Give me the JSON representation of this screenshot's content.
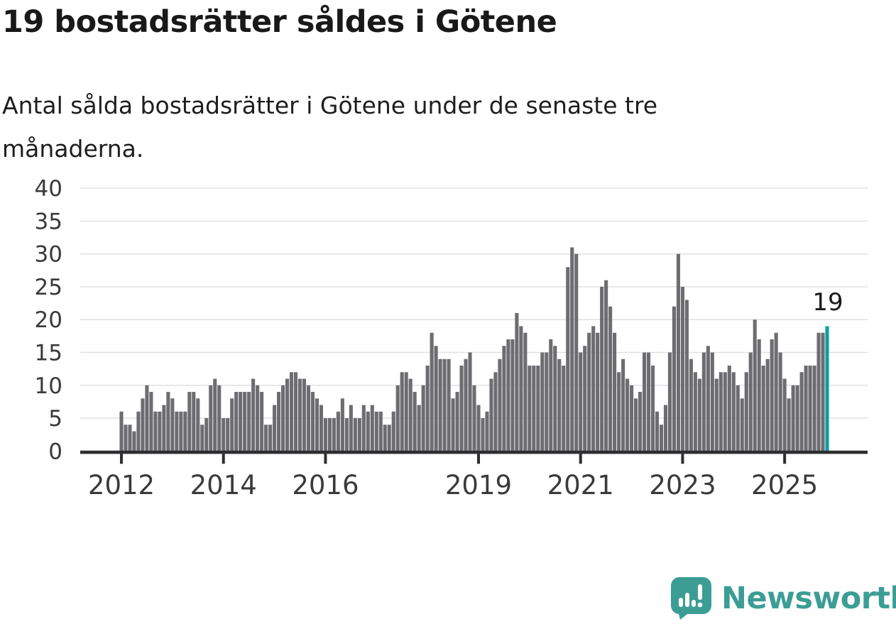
{
  "title": "19 bostadsrätter såldes i Götene",
  "subtitle": "Antal sålda bostadsrätter i Götene under de senaste tre månaderna.",
  "annotation": {
    "last_value_label": "19"
  },
  "branding": {
    "logo_text": "Newsworthy",
    "logo_icon": "speech-bubble-bar-chart-exclamation"
  },
  "colors": {
    "bar": "#6d6d71",
    "highlight": "#0a9fa3",
    "axis": "#2e2e31",
    "grid": "#e1e1e3",
    "tick_label": "#3a3a3a",
    "annotation_text": "#1a1a1a",
    "logo": "#3c9d95",
    "background": "#ffffff"
  },
  "chart_data": {
    "type": "bar",
    "title": "19 bostadsrätter såldes i Götene",
    "subtitle": "Antal sålda bostadsrätter i Götene under de senaste tre månaderna.",
    "ylabel": "",
    "xlabel": "",
    "ylim": [
      0,
      40
    ],
    "y_ticks": [
      0,
      5,
      10,
      15,
      20,
      25,
      30,
      35,
      40
    ],
    "grid": "horizontal",
    "x_start": "2012-01",
    "x_interval": "month",
    "x_ticks": [
      {
        "label": "2012",
        "month_index": 0
      },
      {
        "label": "2014",
        "month_index": 24
      },
      {
        "label": "2016",
        "month_index": 48
      },
      {
        "label": "2019",
        "month_index": 84
      },
      {
        "label": "2021",
        "month_index": 108
      },
      {
        "label": "2023",
        "month_index": 132
      },
      {
        "label": "2025",
        "month_index": 156
      }
    ],
    "values": [
      6,
      4,
      4,
      3,
      6,
      8,
      10,
      9,
      6,
      6,
      7,
      9,
      8,
      6,
      6,
      6,
      9,
      9,
      8,
      4,
      5,
      10,
      11,
      10,
      5,
      5,
      8,
      9,
      9,
      9,
      9,
      11,
      10,
      9,
      4,
      4,
      7,
      9,
      10,
      11,
      12,
      12,
      11,
      11,
      10,
      9,
      8,
      7,
      5,
      5,
      5,
      6,
      8,
      5,
      7,
      5,
      5,
      7,
      6,
      7,
      6,
      6,
      4,
      4,
      6,
      10,
      12,
      12,
      11,
      9,
      7,
      10,
      13,
      18,
      16,
      14,
      14,
      14,
      8,
      9,
      13,
      14,
      15,
      10,
      7,
      5,
      6,
      11,
      12,
      14,
      16,
      17,
      17,
      21,
      19,
      18,
      13,
      13,
      13,
      15,
      15,
      17,
      16,
      14,
      13,
      28,
      31,
      30,
      15,
      16,
      18,
      19,
      18,
      25,
      26,
      22,
      18,
      12,
      14,
      11,
      10,
      8,
      9,
      15,
      15,
      13,
      6,
      4,
      7,
      15,
      22,
      30,
      25,
      23,
      14,
      12,
      11,
      15,
      16,
      15,
      11,
      12,
      12,
      13,
      12,
      10,
      8,
      12,
      15,
      20,
      17,
      13,
      14,
      17,
      18,
      15,
      11,
      8,
      10,
      10,
      12,
      13,
      13,
      13,
      18,
      18,
      19
    ],
    "highlight_last": true,
    "last_value_label": "19",
    "legend": "none"
  }
}
